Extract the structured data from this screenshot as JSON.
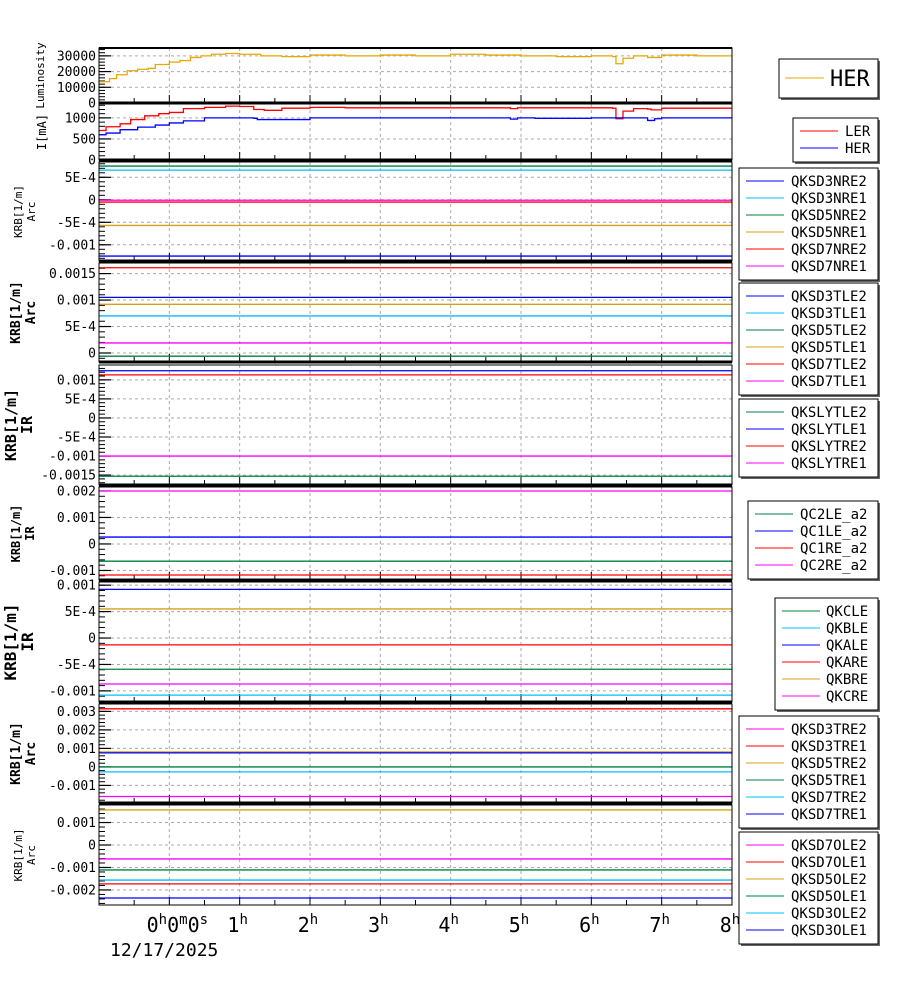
{
  "x_axis": {
    "unit": "hours",
    "xlim": [
      -1,
      8
    ],
    "ticks": [
      0,
      1,
      2,
      3,
      4,
      5,
      6,
      7,
      8
    ],
    "tick_labels": [
      "0h0m0s",
      "1h",
      "2h",
      "3h",
      "4h",
      "5h",
      "6h",
      "7h",
      "8h"
    ],
    "date_label": "12/17/2025",
    "grid": true
  },
  "chart_data": [
    {
      "type": "line",
      "ylabel": [
        "Luminosity"
      ],
      "ylim": [
        0,
        35000
      ],
      "grid": true,
      "yticks": [
        {
          "v": 0,
          "label": "0"
        },
        {
          "v": 10000,
          "label": "10000"
        },
        {
          "v": 20000,
          "label": "20000"
        },
        {
          "v": 30000,
          "label": "30000"
        }
      ],
      "legend": "right",
      "series": [
        {
          "name": "HER",
          "color": "#e6a800",
          "x": [
            -1,
            -0.85,
            -0.75,
            -0.6,
            -0.45,
            -0.3,
            -0.2,
            0,
            0.15,
            0.3,
            0.45,
            0.6,
            0.8,
            1,
            1.3,
            1.6,
            2,
            2.5,
            3,
            3.5,
            4,
            4.5,
            5,
            5.5,
            6,
            6.3,
            6.35,
            6.45,
            6.6,
            6.8,
            7,
            7.5,
            8
          ],
          "y": [
            13500,
            15500,
            18000,
            20500,
            21500,
            22000,
            24500,
            26000,
            27000,
            29000,
            30000,
            31000,
            31500,
            31000,
            30000,
            29500,
            30500,
            30000,
            30500,
            30000,
            31000,
            30500,
            30000,
            29500,
            30000,
            29500,
            25000,
            28500,
            30000,
            29000,
            30500,
            30000,
            30500
          ]
        }
      ]
    },
    {
      "type": "line",
      "ylabel": [
        "I[mA]"
      ],
      "ylim": [
        0,
        1330
      ],
      "grid": true,
      "yticks": [
        {
          "v": 0,
          "label": "0"
        },
        {
          "v": 500,
          "label": "500"
        },
        {
          "v": 1000,
          "label": "1000"
        }
      ],
      "legend": "right",
      "series": [
        {
          "name": "LER",
          "color": "#ff0000",
          "x": [
            -1,
            -0.9,
            -0.7,
            -0.55,
            -0.35,
            -0.15,
            0,
            0.2,
            0.5,
            0.8,
            1,
            1.2,
            1.35,
            1.6,
            2,
            2.5,
            3,
            4,
            4.85,
            4.95,
            5.2,
            6,
            6.3,
            6.35,
            6.45,
            6.6,
            6.8,
            6.85,
            7,
            8
          ],
          "y": [
            700,
            790,
            860,
            960,
            1050,
            1100,
            1130,
            1220,
            1250,
            1280,
            1270,
            1200,
            1180,
            1230,
            1250,
            1240,
            1240,
            1240,
            1220,
            1240,
            1240,
            1240,
            1230,
            980,
            1160,
            1220,
            1210,
            1190,
            1230,
            1240
          ]
        },
        {
          "name": "HER",
          "color": "#0000ff",
          "x": [
            -1,
            -0.9,
            -0.7,
            -0.45,
            -0.2,
            0,
            0.2,
            0.5,
            1,
            1.2,
            1.25,
            2,
            3,
            4,
            4.85,
            4.95,
            5.2,
            6,
            6.3,
            6.8,
            6.9,
            7,
            8
          ],
          "y": [
            600,
            640,
            720,
            780,
            830,
            880,
            930,
            1000,
            1000,
            990,
            960,
            1000,
            1000,
            1000,
            970,
            1000,
            990,
            1000,
            1000,
            940,
            980,
            1000,
            1000
          ]
        }
      ]
    },
    {
      "type": "line",
      "ylabel": [
        "KRB[1/m]",
        "Arc"
      ],
      "ylim": [
        -0.00136,
        0.00084
      ],
      "grid": true,
      "yticks": [
        {
          "v": -0.001,
          "label": "-0.001"
        },
        {
          "v": -0.0005,
          "label": "-5E-4"
        },
        {
          "v": 0,
          "label": "0"
        },
        {
          "v": 0.0005,
          "label": "5E-4"
        }
      ],
      "legend": "right",
      "series": [
        {
          "name": "QKSD3NRE2",
          "color": "#0000ff",
          "value": -0.00125
        },
        {
          "name": "QKSD3NRE1",
          "color": "#00bfff",
          "value": 0.00066
        },
        {
          "name": "QKSD5NRE2",
          "color": "#008040",
          "value": 0.00075
        },
        {
          "name": "QKSD5NRE1",
          "color": "#d4a017",
          "value": -0.00057
        },
        {
          "name": "QKSD7NRE2",
          "color": "#ff0000",
          "value": -5e-05
        },
        {
          "name": "QKSD7NRE1",
          "color": "#ff00ff",
          "value": -1e-05
        }
      ]
    },
    {
      "type": "line",
      "ylabel": [
        "KRB[1/m]",
        "Arc"
      ],
      "ylim": [
        -0.00017,
        0.0017
      ],
      "grid": true,
      "yticks": [
        {
          "v": 0,
          "label": "0"
        },
        {
          "v": 0.0005,
          "label": "5E-4"
        },
        {
          "v": 0.001,
          "label": "0.001"
        },
        {
          "v": 0.0015,
          "label": "0.0015"
        }
      ],
      "legend": "right",
      "series": [
        {
          "name": "QKSD3TLE2",
          "color": "#0000ff",
          "value": 0.00105
        },
        {
          "name": "QKSD3TLE1",
          "color": "#00bfff",
          "value": 0.0007
        },
        {
          "name": "QKSD5TLE2",
          "color": "#008040",
          "value": -6e-05
        },
        {
          "name": "QKSD5TLE1",
          "color": "#d4a017",
          "value": 0.00092
        },
        {
          "name": "QKSD7TLE2",
          "color": "#ff0000",
          "value": 0.00161
        },
        {
          "name": "QKSD7TLE1",
          "color": "#ff00ff",
          "value": 0.00019
        }
      ]
    },
    {
      "type": "line",
      "ylabel": [
        "KRB[1/m]",
        "IR"
      ],
      "ylim": [
        -0.00176,
        0.00139
      ],
      "grid": true,
      "yticks": [
        {
          "v": -0.0015,
          "label": "-0.0015"
        },
        {
          "v": -0.001,
          "label": "-0.001"
        },
        {
          "v": -0.0005,
          "label": "-5E-4"
        },
        {
          "v": 0,
          "label": "0"
        },
        {
          "v": 0.0005,
          "label": "5E-4"
        },
        {
          "v": 0.001,
          "label": "0.001"
        }
      ],
      "legend": "right",
      "series": [
        {
          "name": "QKSLYTLE2",
          "color": "#008040",
          "value": -0.00153
        },
        {
          "name": "QKSLYTLE1",
          "color": "#0000ff",
          "value": 0.00124
        },
        {
          "name": "QKSLYTRE2",
          "color": "#ff0000",
          "value": 0.00113
        },
        {
          "name": "QKSLYTRE1",
          "color": "#ff00ff",
          "value": -0.001
        }
      ]
    },
    {
      "type": "line",
      "ylabel": [
        "KRB[1/m]",
        "IR"
      ],
      "ylim": [
        -0.00136,
        0.00215
      ],
      "grid": true,
      "yticks": [
        {
          "v": -0.001,
          "label": "-0.001"
        },
        {
          "v": 0,
          "label": "0"
        },
        {
          "v": 0.001,
          "label": "0.001"
        },
        {
          "v": 0.002,
          "label": "0.002"
        }
      ],
      "legend": "right",
      "series": [
        {
          "name": "QC2LE_a2",
          "color": "#008040",
          "value": -0.00065
        },
        {
          "name": "QC1LE_a2",
          "color": "#0000ff",
          "value": 0.00026
        },
        {
          "name": "QC1RE_a2",
          "color": "#ff0000",
          "value": -0.00117
        },
        {
          "name": "QC2RE_a2",
          "color": "#ff00ff",
          "value": 0.002
        }
      ]
    },
    {
      "type": "line",
      "ylabel": [
        "KRB[1/m]",
        "IR"
      ],
      "ylim": [
        -0.00121,
        0.00106
      ],
      "grid": true,
      "yticks": [
        {
          "v": -0.001,
          "label": "-0.001"
        },
        {
          "v": -0.0005,
          "label": "-5E-4"
        },
        {
          "v": 0,
          "label": "0"
        },
        {
          "v": 0.0005,
          "label": "5E-4"
        },
        {
          "v": 0.001,
          "label": "0.001"
        }
      ],
      "legend": "right",
      "series": [
        {
          "name": "QKCLE",
          "color": "#008040",
          "value": -0.00059
        },
        {
          "name": "QKBLE",
          "color": "#00bfff",
          "value": -0.00108
        },
        {
          "name": "QKALE",
          "color": "#0000ff",
          "value": 0.00092
        },
        {
          "name": "QKARE",
          "color": "#ff0000",
          "value": -0.00013
        },
        {
          "name": "QKBRE",
          "color": "#d4a017",
          "value": 0.00055
        },
        {
          "name": "QKCRE",
          "color": "#ff00ff",
          "value": -0.00087
        }
      ]
    },
    {
      "type": "line",
      "ylabel": [
        "KRB[1/m]",
        "Arc"
      ],
      "ylim": [
        -0.00195,
        0.0034
      ],
      "grid": true,
      "yticks": [
        {
          "v": -0.001,
          "label": "-0.001"
        },
        {
          "v": 0,
          "label": "0"
        },
        {
          "v": 0.001,
          "label": "0.001"
        },
        {
          "v": 0.002,
          "label": "0.002"
        },
        {
          "v": 0.003,
          "label": "0.003"
        }
      ],
      "legend": "right",
      "series": [
        {
          "name": "QKSD3TRE2",
          "color": "#ff00ff",
          "value": -0.0016
        },
        {
          "name": "QKSD3TRE1",
          "color": "#ff0000",
          "value": 0.00314
        },
        {
          "name": "QKSD5TRE2",
          "color": "#d4a017",
          "value": 0.00081
        },
        {
          "name": "QKSD5TRE1",
          "color": "#008040",
          "value": 0
        },
        {
          "name": "QKSD7TRE2",
          "color": "#00bfff",
          "value": -0.00027
        },
        {
          "name": "QKSD7TRE1",
          "color": "#0000ff",
          "value": 0.00076
        }
      ]
    },
    {
      "type": "line",
      "ylabel": [
        "KRB[1/m]",
        "Arc"
      ],
      "ylim": [
        -0.00267,
        0.00178
      ],
      "grid": true,
      "yticks": [
        {
          "v": -0.002,
          "label": "-0.002"
        },
        {
          "v": -0.001,
          "label": "-0.001"
        },
        {
          "v": 0,
          "label": "0"
        },
        {
          "v": 0.001,
          "label": "0.001"
        }
      ],
      "legend": "right",
      "series": [
        {
          "name": "QKSD7OLE2",
          "color": "#ff00ff",
          "value": -0.00062
        },
        {
          "name": "QKSD7OLE1",
          "color": "#ff0000",
          "value": -0.00173
        },
        {
          "name": "QKSD5OLE2",
          "color": "#d4a017",
          "value": 0.00156
        },
        {
          "name": "QKSD5OLE1",
          "color": "#008040",
          "value": -0.00111
        },
        {
          "name": "QKSD3OLE2",
          "color": "#00bfff",
          "value": -0.00156
        },
        {
          "name": "QKSD3OLE1",
          "color": "#0000ff",
          "value": -0.00236
        }
      ]
    }
  ]
}
